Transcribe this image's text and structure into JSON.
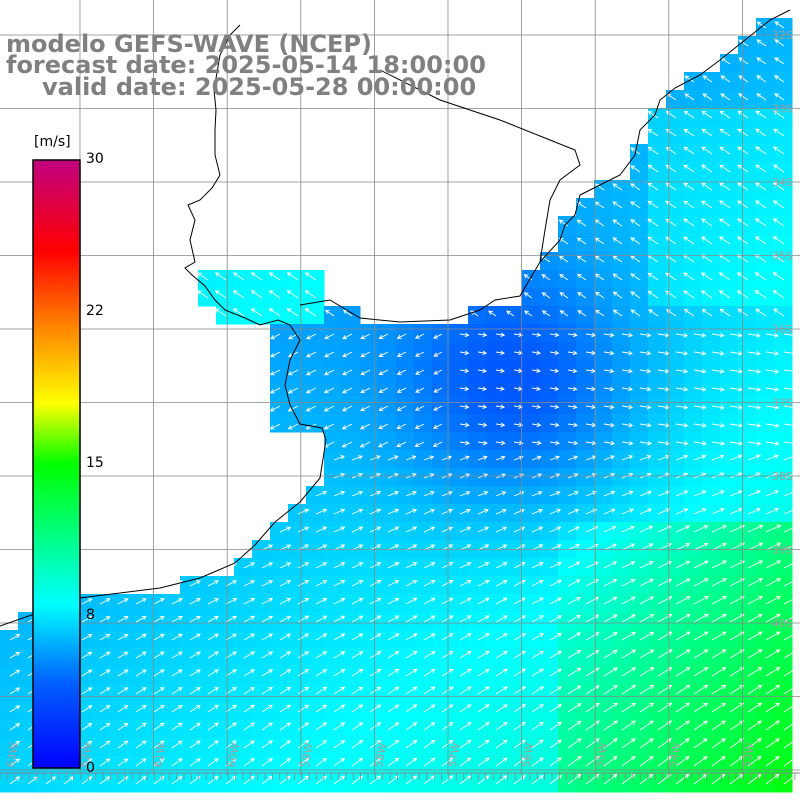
{
  "title": {
    "line1": "modelo GEFS-WAVE (NCEP)",
    "line2": "forecast date: 2025-05-14 18:00:00",
    "line3": "valid date: 2025-05-28 00:00:00"
  },
  "colorbar": {
    "unit": "[m/s]",
    "ticks": [
      "30",
      "22",
      "15",
      "8",
      "0"
    ],
    "min": 0,
    "max": 30,
    "colors": [
      "#0000ff",
      "#00a0ff",
      "#00ffff",
      "#00ff00",
      "#ffff00",
      "#ff8000",
      "#ff0000",
      "#c00080"
    ]
  },
  "map": {
    "ocean_field": "wind speed (m/s) with wind direction arrows",
    "land_color": "#ffffff",
    "grid_color": "#888888",
    "lat_labels": [
      "32S",
      "33S",
      "34S",
      "35S",
      "36S",
      "37S",
      "38S",
      "39S",
      "40S"
    ],
    "lon_labels": [
      "63W",
      "62W",
      "61W",
      "60W",
      "59W",
      "58W",
      "57W",
      "56W",
      "55W",
      "54W",
      "53W"
    ]
  }
}
